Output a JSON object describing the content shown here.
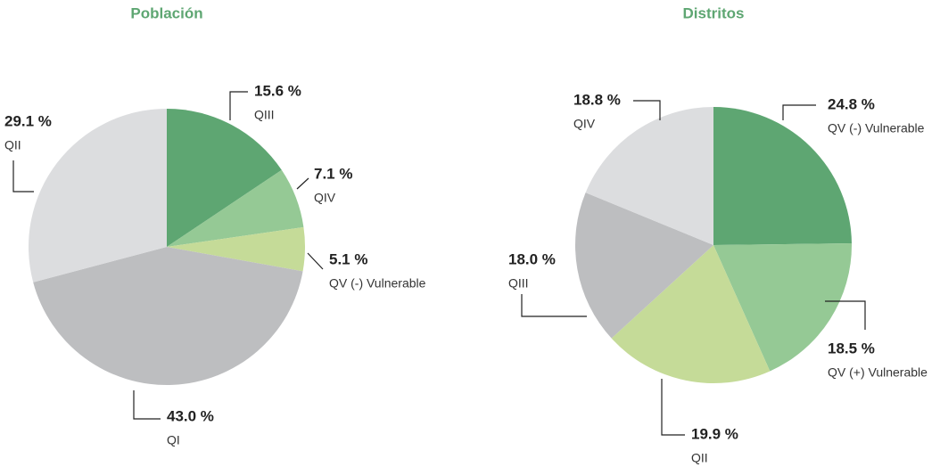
{
  "chart_data": [
    {
      "type": "pie",
      "title": "Población",
      "categories": [
        "QIII",
        "QIV",
        "QV (-) Vulnerable",
        "QI",
        "QII"
      ],
      "values": [
        15.6,
        7.1,
        5.1,
        43.0,
        29.1
      ],
      "value_labels": [
        "15.6 %",
        "7.1 %",
        "5.1 %",
        "43.0 %",
        "29.1 %"
      ],
      "colors": [
        "#5ea672",
        "#95c995",
        "#c5db98",
        "#bdbec0",
        "#dcdddf"
      ]
    },
    {
      "type": "pie",
      "title": "Distritos",
      "categories": [
        "QV (-) Vulnerable",
        "QV (+) Vulnerable",
        "QII",
        "QIII",
        "QIV"
      ],
      "values": [
        24.8,
        18.5,
        19.9,
        18.0,
        18.8
      ],
      "value_labels": [
        "24.8 %",
        "18.5 %",
        "19.9 %",
        "18.0 %",
        "18.8 %"
      ],
      "colors": [
        "#5ea672",
        "#95c995",
        "#c5db98",
        "#bdbec0",
        "#dcdddf"
      ]
    }
  ]
}
